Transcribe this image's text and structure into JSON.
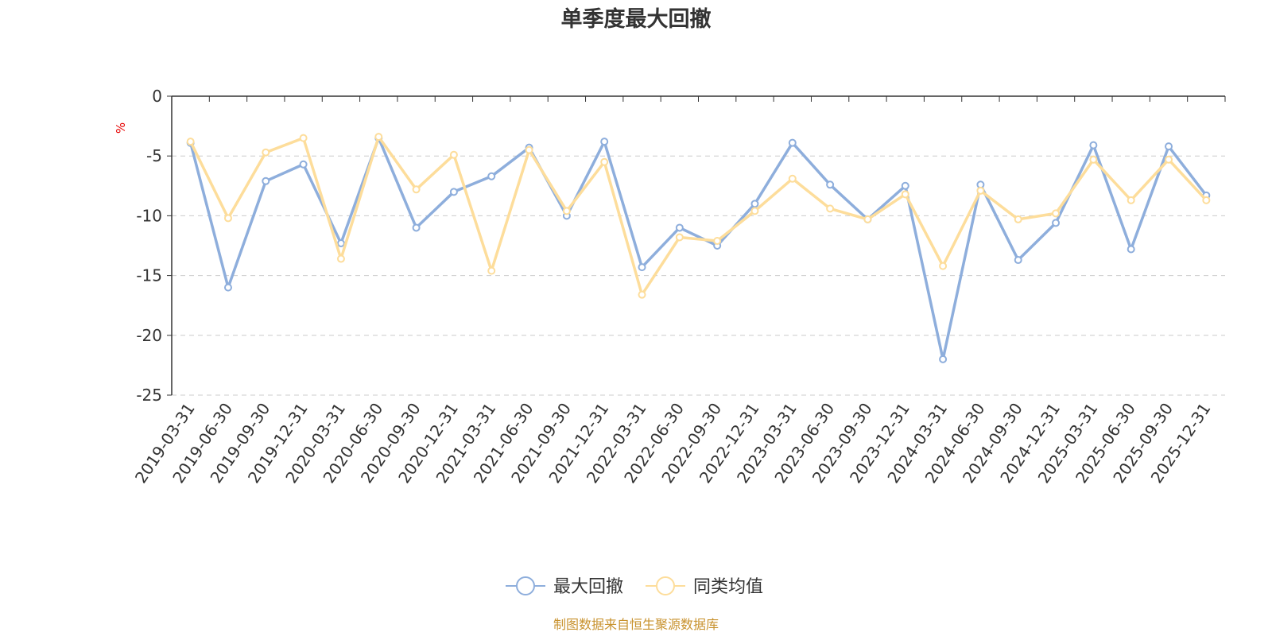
{
  "chart_data": {
    "type": "line",
    "title": "单季度最大回撤",
    "ylabel": "%",
    "ylim": [
      -25,
      0
    ],
    "yticks": [
      0,
      -5,
      -10,
      -15,
      -20,
      -25
    ],
    "grid": true,
    "legend_position": "bottom",
    "categories": [
      "2019-03-31",
      "2019-06-30",
      "2019-09-30",
      "2019-12-31",
      "2020-03-31",
      "2020-06-30",
      "2020-09-30",
      "2020-12-31",
      "2021-03-31",
      "2021-06-30",
      "2021-09-30",
      "2021-12-31",
      "2022-03-31",
      "2022-06-30",
      "2022-09-30",
      "2022-12-31",
      "2023-03-31",
      "2023-06-30",
      "2023-09-30",
      "2023-12-31",
      "2024-03-31",
      "2024-06-30",
      "2024-09-30",
      "2024-12-31",
      "2025-03-31",
      "2025-06-30",
      "2025-09-30",
      "2025-12-31"
    ],
    "series": [
      {
        "name": "最大回撤",
        "color": "#8eaedc",
        "values": [
          -3.9,
          -16.0,
          -7.1,
          -5.7,
          -12.3,
          -3.5,
          -11.0,
          -8.0,
          -6.7,
          -4.3,
          -10.0,
          -3.8,
          -14.3,
          -11.0,
          -12.5,
          -9.0,
          -3.9,
          -7.4,
          -10.3,
          -7.5,
          -22.0,
          -7.4,
          -13.7,
          -10.6,
          -4.1,
          -12.8,
          -4.2,
          -8.3
        ]
      },
      {
        "name": "同类均值",
        "color": "#fddd9b",
        "values": [
          -3.8,
          -10.2,
          -4.7,
          -3.5,
          -13.6,
          -3.4,
          -7.8,
          -4.9,
          -14.6,
          -4.5,
          -9.6,
          -5.5,
          -16.6,
          -11.8,
          -12.1,
          -9.6,
          -6.9,
          -9.4,
          -10.3,
          -8.2,
          -14.2,
          -7.9,
          -10.3,
          -9.8,
          -5.3,
          -8.7,
          -5.3,
          -8.7
        ]
      }
    ],
    "source": "制图数据来自恒生聚源数据库"
  },
  "colors": {
    "axis": "#333333",
    "grid": "#cccccc",
    "unit_label": "#e60000",
    "source_text": "#c8922e"
  }
}
